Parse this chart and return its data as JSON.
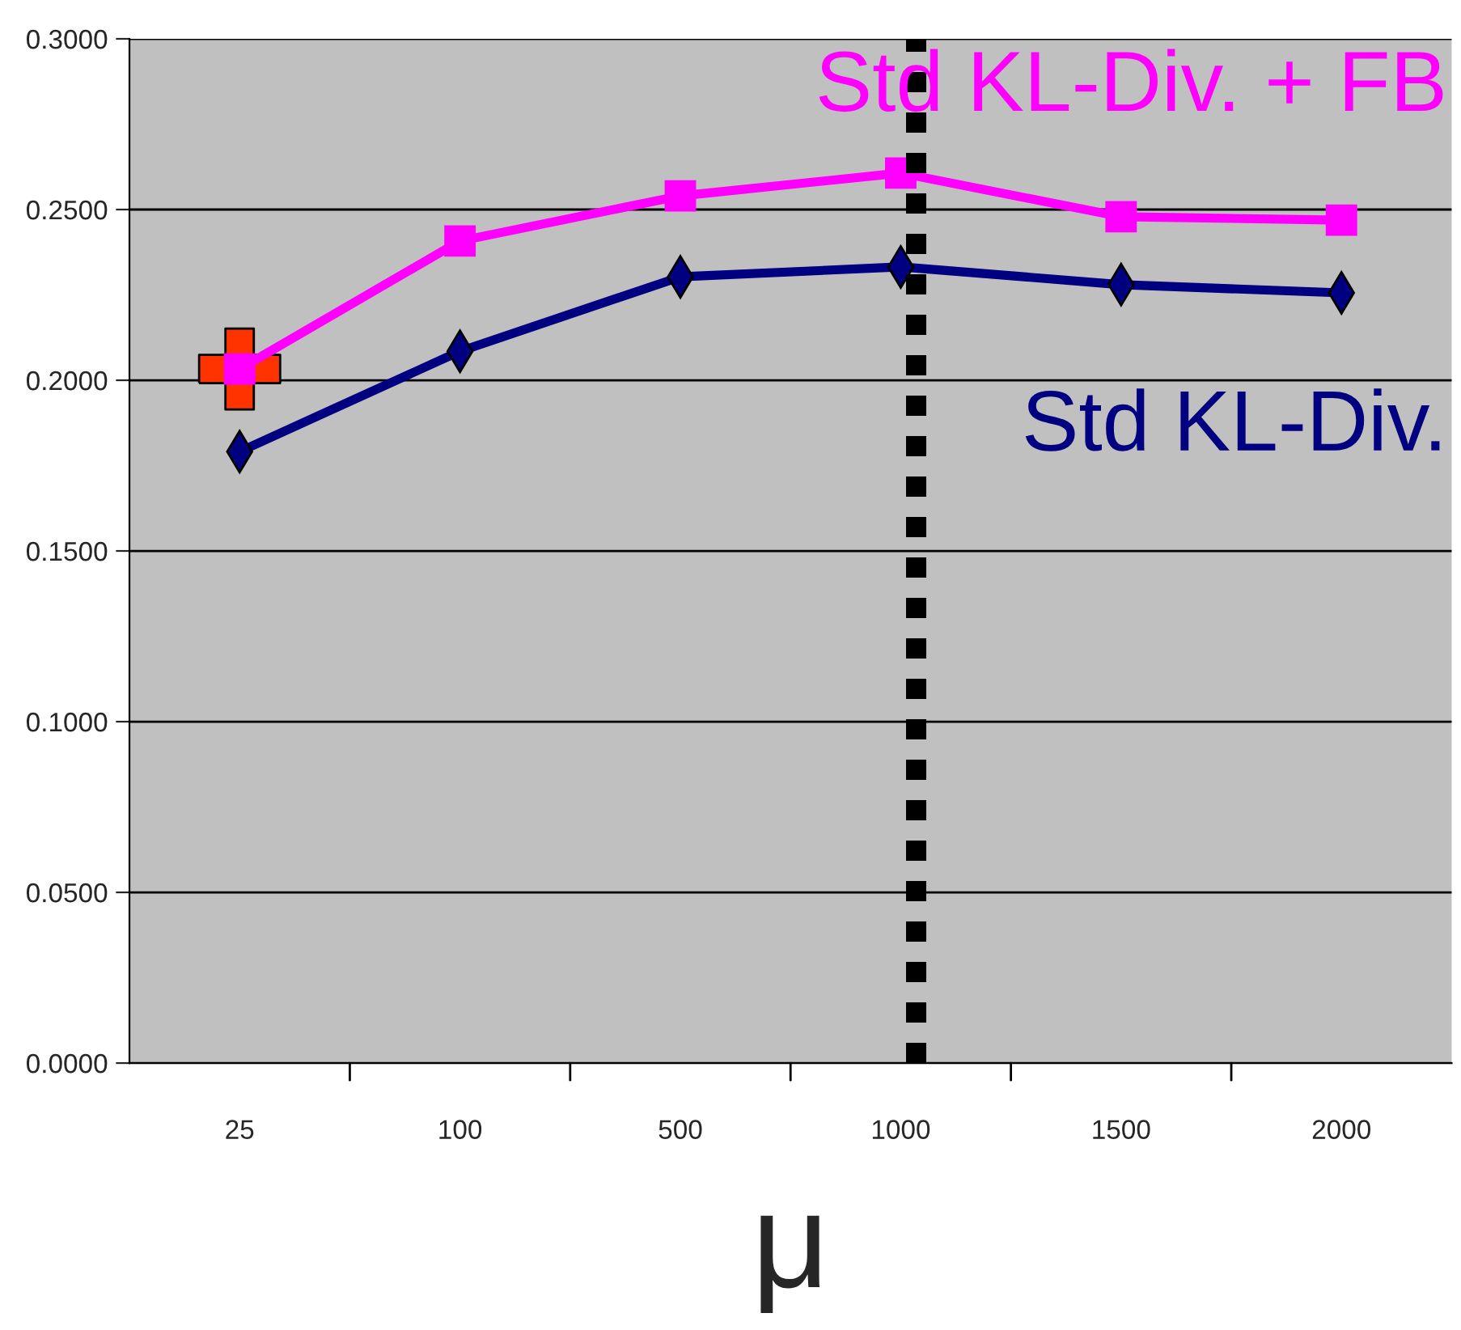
{
  "chart_data": {
    "type": "line",
    "xlabel": "μ",
    "categories": [
      "25",
      "100",
      "500",
      "1000",
      "1500",
      "2000"
    ],
    "series": [
      {
        "name": "Std KL-Div. + FB",
        "color": "#ff00ff",
        "marker": "square",
        "values": [
          0.2033,
          0.2408,
          0.254,
          0.2607,
          0.2479,
          0.2469
        ]
      },
      {
        "name": "Std KL-Div.",
        "color": "#000080",
        "marker": "diamond",
        "values": [
          0.1791,
          0.2085,
          0.2303,
          0.2332,
          0.228,
          0.2256
        ]
      },
      {
        "type": "scatter",
        "x": [
          "25"
        ],
        "color": "#ff3300",
        "marker": "cross",
        "values": [
          0.2033
        ]
      }
    ],
    "ref_lines": [
      {
        "axis": "x",
        "value": "1000",
        "color": "#000000",
        "line_style": "dotted"
      }
    ],
    "ylim": [
      0,
      0.3
    ],
    "yticks": [
      {
        "value": 0,
        "label": "0.0000"
      },
      {
        "value": 0.05,
        "label": "0.0500"
      },
      {
        "value": 0.1,
        "label": "0.1000"
      },
      {
        "value": 0.15,
        "label": "0.1500"
      },
      {
        "value": 0.2,
        "label": "0.2000"
      },
      {
        "value": 0.25,
        "label": "0.2500"
      },
      {
        "value": 0.3,
        "label": "0.3000"
      }
    ],
    "grid": "y",
    "legend": false
  }
}
